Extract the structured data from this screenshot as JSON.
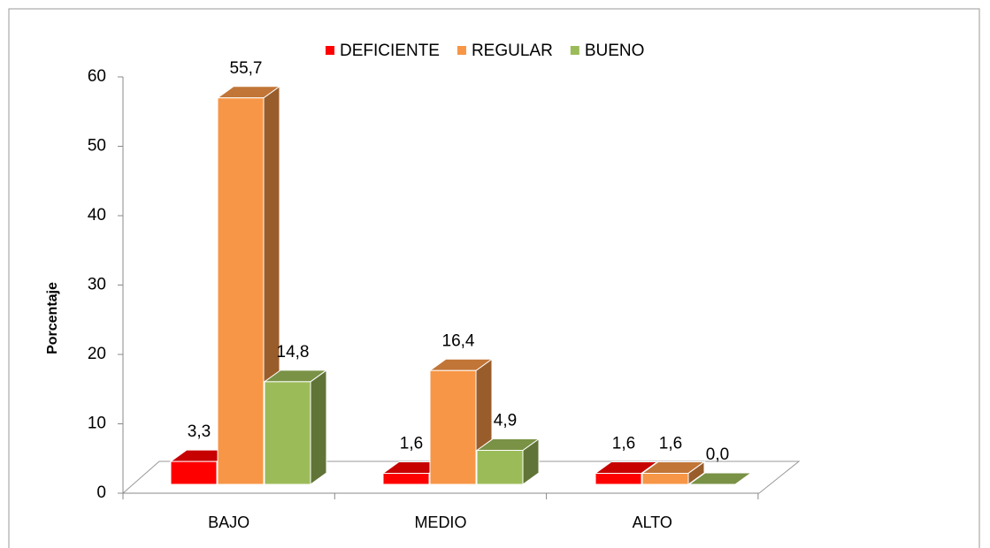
{
  "chart_data": {
    "type": "bar3d",
    "categories": [
      "BAJO",
      "MEDIO",
      "ALTO"
    ],
    "series": [
      {
        "name": "DEFICIENTE",
        "color": "#ff0000",
        "values": [
          3.3,
          1.6,
          1.6
        ],
        "value_labels": [
          "3,3",
          "1,6",
          "1,6"
        ]
      },
      {
        "name": "REGULAR",
        "color": "#f79646",
        "values": [
          55.7,
          16.4,
          1.6
        ],
        "value_labels": [
          "55,7",
          "16,4",
          "1,6"
        ]
      },
      {
        "name": "BUENO",
        "color": "#9bbb59",
        "values": [
          14.8,
          4.9,
          0.0
        ],
        "value_labels": [
          "14,8",
          "4,9",
          "0,0"
        ]
      }
    ],
    "ylabel": "Porcentaje",
    "ylim": [
      0,
      60
    ],
    "yticks": [
      0,
      10,
      20,
      30,
      40,
      50,
      60
    ],
    "legend": "top"
  }
}
